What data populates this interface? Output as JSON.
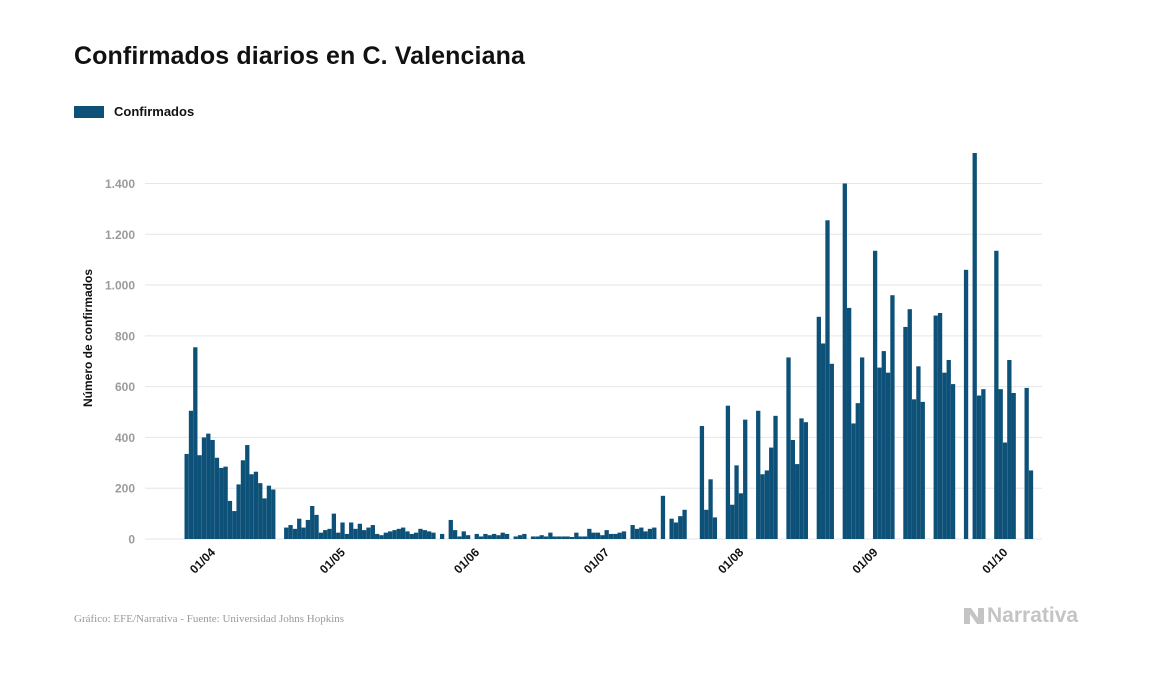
{
  "title": "Confirmados diarios en C. Valenciana",
  "legend": {
    "label": "Confirmados",
    "color": "#0e5178"
  },
  "footer": {
    "source": "Gráfico: EFE/Narrativa - Fuente: Universidad Johns Hopkins"
  },
  "brand": {
    "name": "Narrativa"
  },
  "chart_data": {
    "type": "bar",
    "title": "Confirmados diarios en C. Valenciana",
    "xlabel": "",
    "ylabel": "Número de confirmados",
    "series_name": "Confirmados",
    "color": "#0e5178",
    "ylim": [
      0,
      1520
    ],
    "yticks": [
      {
        "value": 0,
        "label": "0"
      },
      {
        "value": 200,
        "label": "200"
      },
      {
        "value": 400,
        "label": "400"
      },
      {
        "value": 600,
        "label": "600"
      },
      {
        "value": 800,
        "label": "800"
      },
      {
        "value": 1000,
        "label": "1.000"
      },
      {
        "value": 1200,
        "label": "1.200"
      },
      {
        "value": 1400,
        "label": "1.400"
      }
    ],
    "xticks": [
      {
        "label": "01/04",
        "day_index": 4
      },
      {
        "label": "01/05",
        "day_index": 34
      },
      {
        "label": "01/06",
        "day_index": 65
      },
      {
        "label": "01/07",
        "day_index": 95
      },
      {
        "label": "01/08",
        "day_index": 126
      },
      {
        "label": "01/09",
        "day_index": 157
      },
      {
        "label": "01/10",
        "day_index": 187
      }
    ],
    "start_day_label": "28/03",
    "values": [
      335,
      505,
      755,
      330,
      400,
      415,
      390,
      320,
      280,
      285,
      150,
      110,
      215,
      310,
      370,
      255,
      265,
      220,
      160,
      210,
      195,
      0,
      0,
      45,
      55,
      40,
      80,
      45,
      75,
      130,
      95,
      25,
      35,
      40,
      100,
      25,
      65,
      20,
      65,
      40,
      60,
      35,
      45,
      55,
      20,
      15,
      25,
      30,
      35,
      40,
      45,
      30,
      20,
      25,
      40,
      35,
      30,
      25,
      0,
      20,
      0,
      75,
      35,
      10,
      30,
      15,
      0,
      20,
      10,
      20,
      15,
      20,
      15,
      25,
      20,
      0,
      10,
      15,
      20,
      0,
      10,
      10,
      15,
      10,
      25,
      10,
      10,
      10,
      10,
      8,
      25,
      10,
      10,
      40,
      25,
      25,
      15,
      35,
      20,
      20,
      25,
      30,
      0,
      55,
      40,
      45,
      30,
      40,
      45,
      0,
      170,
      0,
      80,
      65,
      90,
      115,
      0,
      0,
      0,
      445,
      115,
      235,
      85,
      0,
      0,
      525,
      135,
      290,
      180,
      470,
      0,
      0,
      505,
      255,
      270,
      360,
      485,
      0,
      0,
      715,
      390,
      295,
      475,
      460,
      0,
      0,
      875,
      770,
      1255,
      690,
      0,
      0,
      1400,
      910,
      455,
      535,
      715,
      0,
      0,
      1135,
      675,
      740,
      655,
      960,
      0,
      0,
      835,
      905,
      550,
      680,
      540,
      0,
      0,
      880,
      890,
      655,
      705,
      610,
      0,
      0,
      1060,
      0,
      1520,
      565,
      590,
      0,
      0,
      1135,
      590,
      380,
      705,
      575,
      0,
      0,
      595,
      270
    ]
  }
}
